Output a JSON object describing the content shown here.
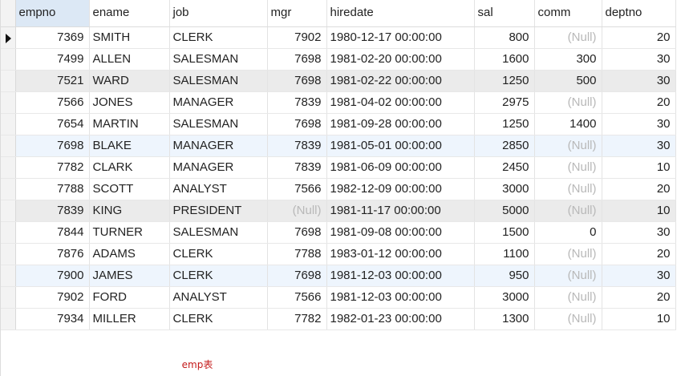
{
  "table": {
    "columns": [
      "empno",
      "ename",
      "job",
      "mgr",
      "hiredate",
      "sal",
      "comm",
      "deptno"
    ],
    "rows": [
      {
        "empno": "7369",
        "ename": "SMITH",
        "job": "CLERK",
        "mgr": "7902",
        "hiredate": "1980-12-17 00:00:00",
        "sal": "800",
        "comm": "(Null)",
        "deptno": "20"
      },
      {
        "empno": "7499",
        "ename": "ALLEN",
        "job": "SALESMAN",
        "mgr": "7698",
        "hiredate": "1981-02-20 00:00:00",
        "sal": "1600",
        "comm": "300",
        "deptno": "30"
      },
      {
        "empno": "7521",
        "ename": "WARD",
        "job": "SALESMAN",
        "mgr": "7698",
        "hiredate": "1981-02-22 00:00:00",
        "sal": "1250",
        "comm": "500",
        "deptno": "30"
      },
      {
        "empno": "7566",
        "ename": "JONES",
        "job": "MANAGER",
        "mgr": "7839",
        "hiredate": "1981-04-02 00:00:00",
        "sal": "2975",
        "comm": "(Null)",
        "deptno": "20"
      },
      {
        "empno": "7654",
        "ename": "MARTIN",
        "job": "SALESMAN",
        "mgr": "7698",
        "hiredate": "1981-09-28 00:00:00",
        "sal": "1250",
        "comm": "1400",
        "deptno": "30"
      },
      {
        "empno": "7698",
        "ename": "BLAKE",
        "job": "MANAGER",
        "mgr": "7839",
        "hiredate": "1981-05-01 00:00:00",
        "sal": "2850",
        "comm": "(Null)",
        "deptno": "30"
      },
      {
        "empno": "7782",
        "ename": "CLARK",
        "job": "MANAGER",
        "mgr": "7839",
        "hiredate": "1981-06-09 00:00:00",
        "sal": "2450",
        "comm": "(Null)",
        "deptno": "10"
      },
      {
        "empno": "7788",
        "ename": "SCOTT",
        "job": "ANALYST",
        "mgr": "7566",
        "hiredate": "1982-12-09 00:00:00",
        "sal": "3000",
        "comm": "(Null)",
        "deptno": "20"
      },
      {
        "empno": "7839",
        "ename": "KING",
        "job": "PRESIDENT",
        "mgr": "(Null)",
        "hiredate": "1981-11-17 00:00:00",
        "sal": "5000",
        "comm": "(Null)",
        "deptno": "10"
      },
      {
        "empno": "7844",
        "ename": "TURNER",
        "job": "SALESMAN",
        "mgr": "7698",
        "hiredate": "1981-09-08 00:00:00",
        "sal": "1500",
        "comm": "0",
        "deptno": "30"
      },
      {
        "empno": "7876",
        "ename": "ADAMS",
        "job": "CLERK",
        "mgr": "7788",
        "hiredate": "1983-01-12 00:00:00",
        "sal": "1100",
        "comm": "(Null)",
        "deptno": "20"
      },
      {
        "empno": "7900",
        "ename": "JAMES",
        "job": "CLERK",
        "mgr": "7698",
        "hiredate": "1981-12-03 00:00:00",
        "sal": "950",
        "comm": "(Null)",
        "deptno": "30"
      },
      {
        "empno": "7902",
        "ename": "FORD",
        "job": "ANALYST",
        "mgr": "7566",
        "hiredate": "1981-12-03 00:00:00",
        "sal": "3000",
        "comm": "(Null)",
        "deptno": "20"
      },
      {
        "empno": "7934",
        "ename": "MILLER",
        "job": "CLERK",
        "mgr": "7782",
        "hiredate": "1982-01-23 00:00:00",
        "sal": "1300",
        "comm": "(Null)",
        "deptno": "10"
      }
    ]
  },
  "caption": "emp表",
  "colors": {
    "null_text": "#b8b8b8",
    "caption": "#c41b1b",
    "header_selected": "#dce8f5",
    "row_highlight_gray": "#ebebeb",
    "row_highlight_blue": "#eef5fd"
  },
  "icons": {
    "current_row_indicator": "row-pointer-icon"
  }
}
